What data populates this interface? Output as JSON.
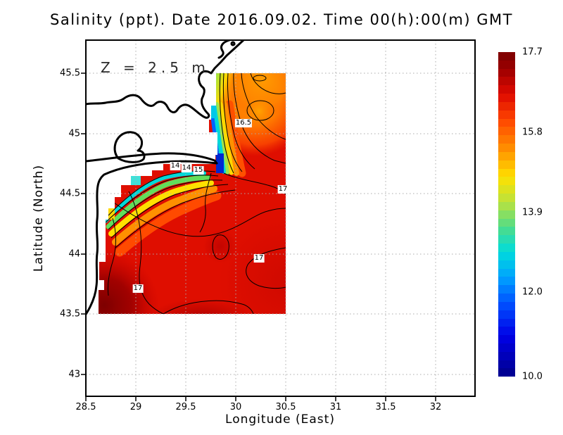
{
  "title": "Salinity (ppt). Date 2016.09.02. Time 00(h):00(m) GMT",
  "annotation": "Z = 2.5 m",
  "axes": {
    "x_label": "Longitude (East)",
    "y_label": "Latitude (North)",
    "x_ticks": [
      "28.5",
      "29",
      "29.5",
      "30",
      "30.5",
      "31",
      "31.5",
      "32"
    ],
    "y_ticks": [
      "45.5",
      "45",
      "44.5",
      "44",
      "43.5",
      "43"
    ]
  },
  "colorbar": {
    "ticks": [
      "17.7",
      "15.8",
      "13.9",
      "12.0",
      "10.0"
    ],
    "min": 10.0,
    "max": 17.7,
    "palette": [
      {
        "t": 0.0,
        "c": "#7A0000"
      },
      {
        "t": 0.055,
        "c": "#9E0000"
      },
      {
        "t": 0.13,
        "c": "#DE0A00"
      },
      {
        "t": 0.21,
        "c": "#FF4600"
      },
      {
        "t": 0.3,
        "c": "#FF9000"
      },
      {
        "t": 0.385,
        "c": "#FFE100"
      },
      {
        "t": 0.46,
        "c": "#BCE23C"
      },
      {
        "t": 0.545,
        "c": "#4ADC8E"
      },
      {
        "t": 0.615,
        "c": "#00DCDC"
      },
      {
        "t": 0.695,
        "c": "#00A2FF"
      },
      {
        "t": 0.775,
        "c": "#0050FF"
      },
      {
        "t": 0.875,
        "c": "#0000E6"
      },
      {
        "t": 1.0,
        "c": "#00008B"
      }
    ],
    "bands": 39
  },
  "chart_data": {
    "type": "heatmap",
    "title": "Salinity (ppt). Date 2016.09.02. Time 00(h):00(m) GMT",
    "variable": "Salinity (ppt)",
    "date": "2016.09.02",
    "time": "00(h):00(m) GMT",
    "depth_annotation": "Z = 2.5 m",
    "xlabel": "Longitude (East)",
    "ylabel": "Latitude (North)",
    "x_ticks": [
      28.5,
      29,
      29.5,
      30,
      30.5,
      31,
      31.5,
      32
    ],
    "y_ticks": [
      45.5,
      45,
      44.5,
      44,
      43.5,
      43
    ],
    "axis_x_range": [
      28.5,
      32.4
    ],
    "axis_y_range": [
      42.8,
      45.8
    ],
    "data_extent_lon": [
      28.6,
      30.5
    ],
    "data_extent_lat": [
      43.5,
      45.5
    ],
    "value_range": [
      10.0,
      17.7
    ],
    "colorbar_tick_values": [
      17.7,
      15.8,
      13.9,
      12.0,
      10.0
    ],
    "grid": true,
    "legend_position": "right-colorbar",
    "contour_labels": [
      {
        "text": "16.5",
        "lon": 30.08,
        "lat": 45.09
      },
      {
        "text": "14",
        "lon": 29.39,
        "lat": 44.73
      },
      {
        "text": "14",
        "lon": 29.51,
        "lat": 44.71
      },
      {
        "text": "15",
        "lon": 29.63,
        "lat": 44.69
      },
      {
        "text": "17",
        "lon": 30.47,
        "lat": 44.54
      },
      {
        "text": "17",
        "lon": 30.23,
        "lat": 43.96
      },
      {
        "text": "17",
        "lon": 29.02,
        "lat": 43.71
      }
    ],
    "field_description": "Mostly ~17 ppt (red) over the western Black Sea shelf; low-salinity coastal band 10-15 ppt (blue-cyan-yellow) along the Danube delta coast near 29.6-29.8E / 44.6-45.5N; orange ~16-16.5 ppt plume in the northern part; darkest red ~17.7 ppt near the southwest corner."
  }
}
